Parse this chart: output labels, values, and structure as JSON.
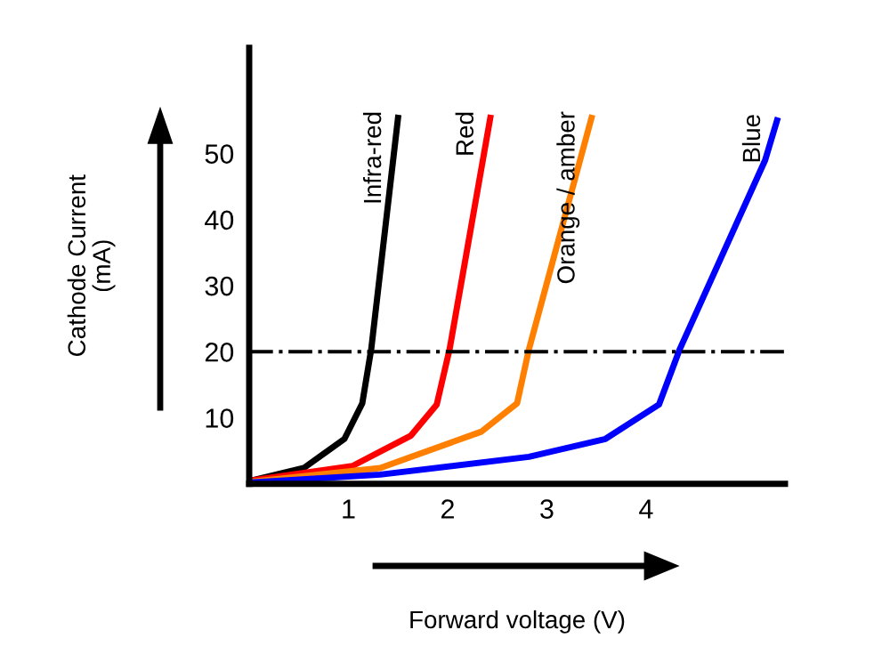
{
  "chart_data": {
    "type": "line",
    "xlabel": "Forward voltage (V)",
    "ylabel": "Cathode Current\n(mA)",
    "xlim": [
      0,
      5.4
    ],
    "ylim": [
      0,
      66
    ],
    "xticks": [
      1,
      2,
      3,
      4
    ],
    "yticks": [
      10,
      20,
      30,
      40,
      50
    ],
    "grid": false,
    "legend": false,
    "marker": "none",
    "line_style": "solid",
    "series": [
      {
        "name": "Infra-red",
        "color": "#000000",
        "x": [
          0.02,
          0.55,
          0.96,
          1.14,
          1.23,
          1.5
        ],
        "values": [
          0.5,
          2.4,
          6.8,
          12.2,
          20.4,
          55.4
        ]
      },
      {
        "name": "Red",
        "color": "#ff0000",
        "x": [
          0.02,
          1.04,
          1.63,
          1.89,
          2.02,
          2.43
        ],
        "values": [
          0.5,
          2.7,
          7.3,
          12,
          20.4,
          55.4
        ]
      },
      {
        "name": "Orange / amber",
        "color": "#ff7f00",
        "x": [
          0.02,
          1.32,
          2.34,
          2.7,
          2.82,
          3.45
        ],
        "values": [
          0.3,
          2.4,
          7.9,
          12.2,
          20.4,
          55.4
        ]
      },
      {
        "name": "Blue",
        "color": "#0000ff",
        "x": [
          0.02,
          1.32,
          2.82,
          3.59,
          4.13,
          4.34,
          5.2,
          5.32
        ],
        "values": [
          0.2,
          1.4,
          4.1,
          6.8,
          12,
          20.4,
          49,
          55
        ]
      }
    ],
    "ref_lines": [
      {
        "axis": "y",
        "value": 20,
        "color": "#000000",
        "line_style": "dashdot"
      }
    ]
  }
}
